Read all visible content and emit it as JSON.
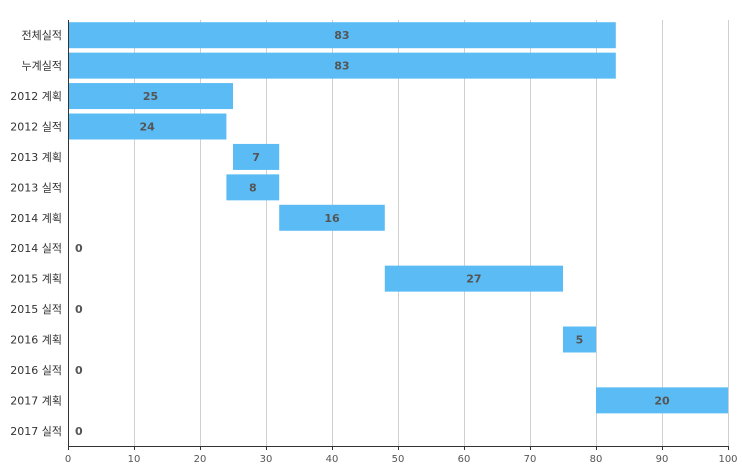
{
  "chart_data": {
    "type": "bar",
    "orientation": "horizontal",
    "stacked_floating": true,
    "categories": [
      "전체실적",
      "누계실적",
      "2012 계획",
      "2012 실적",
      "2013 계획",
      "2013 실적",
      "2014 계획",
      "2014 실적",
      "2015 계획",
      "2015 실적",
      "2016 계획",
      "2016 실적",
      "2017 계획",
      "2017 실적"
    ],
    "starts": [
      0,
      0,
      0,
      0,
      25,
      24,
      32,
      0,
      48,
      0,
      75,
      0,
      80,
      0
    ],
    "values": [
      83,
      83,
      25,
      24,
      7,
      8,
      16,
      0,
      27,
      0,
      5,
      0,
      20,
      0
    ],
    "xlim": [
      0,
      100
    ],
    "xticks": [
      0,
      10,
      20,
      30,
      40,
      50,
      60,
      70,
      80,
      90,
      100
    ],
    "grid": true,
    "bar_color": "#5bbcf5",
    "grid_color": "#d0d0d0"
  }
}
